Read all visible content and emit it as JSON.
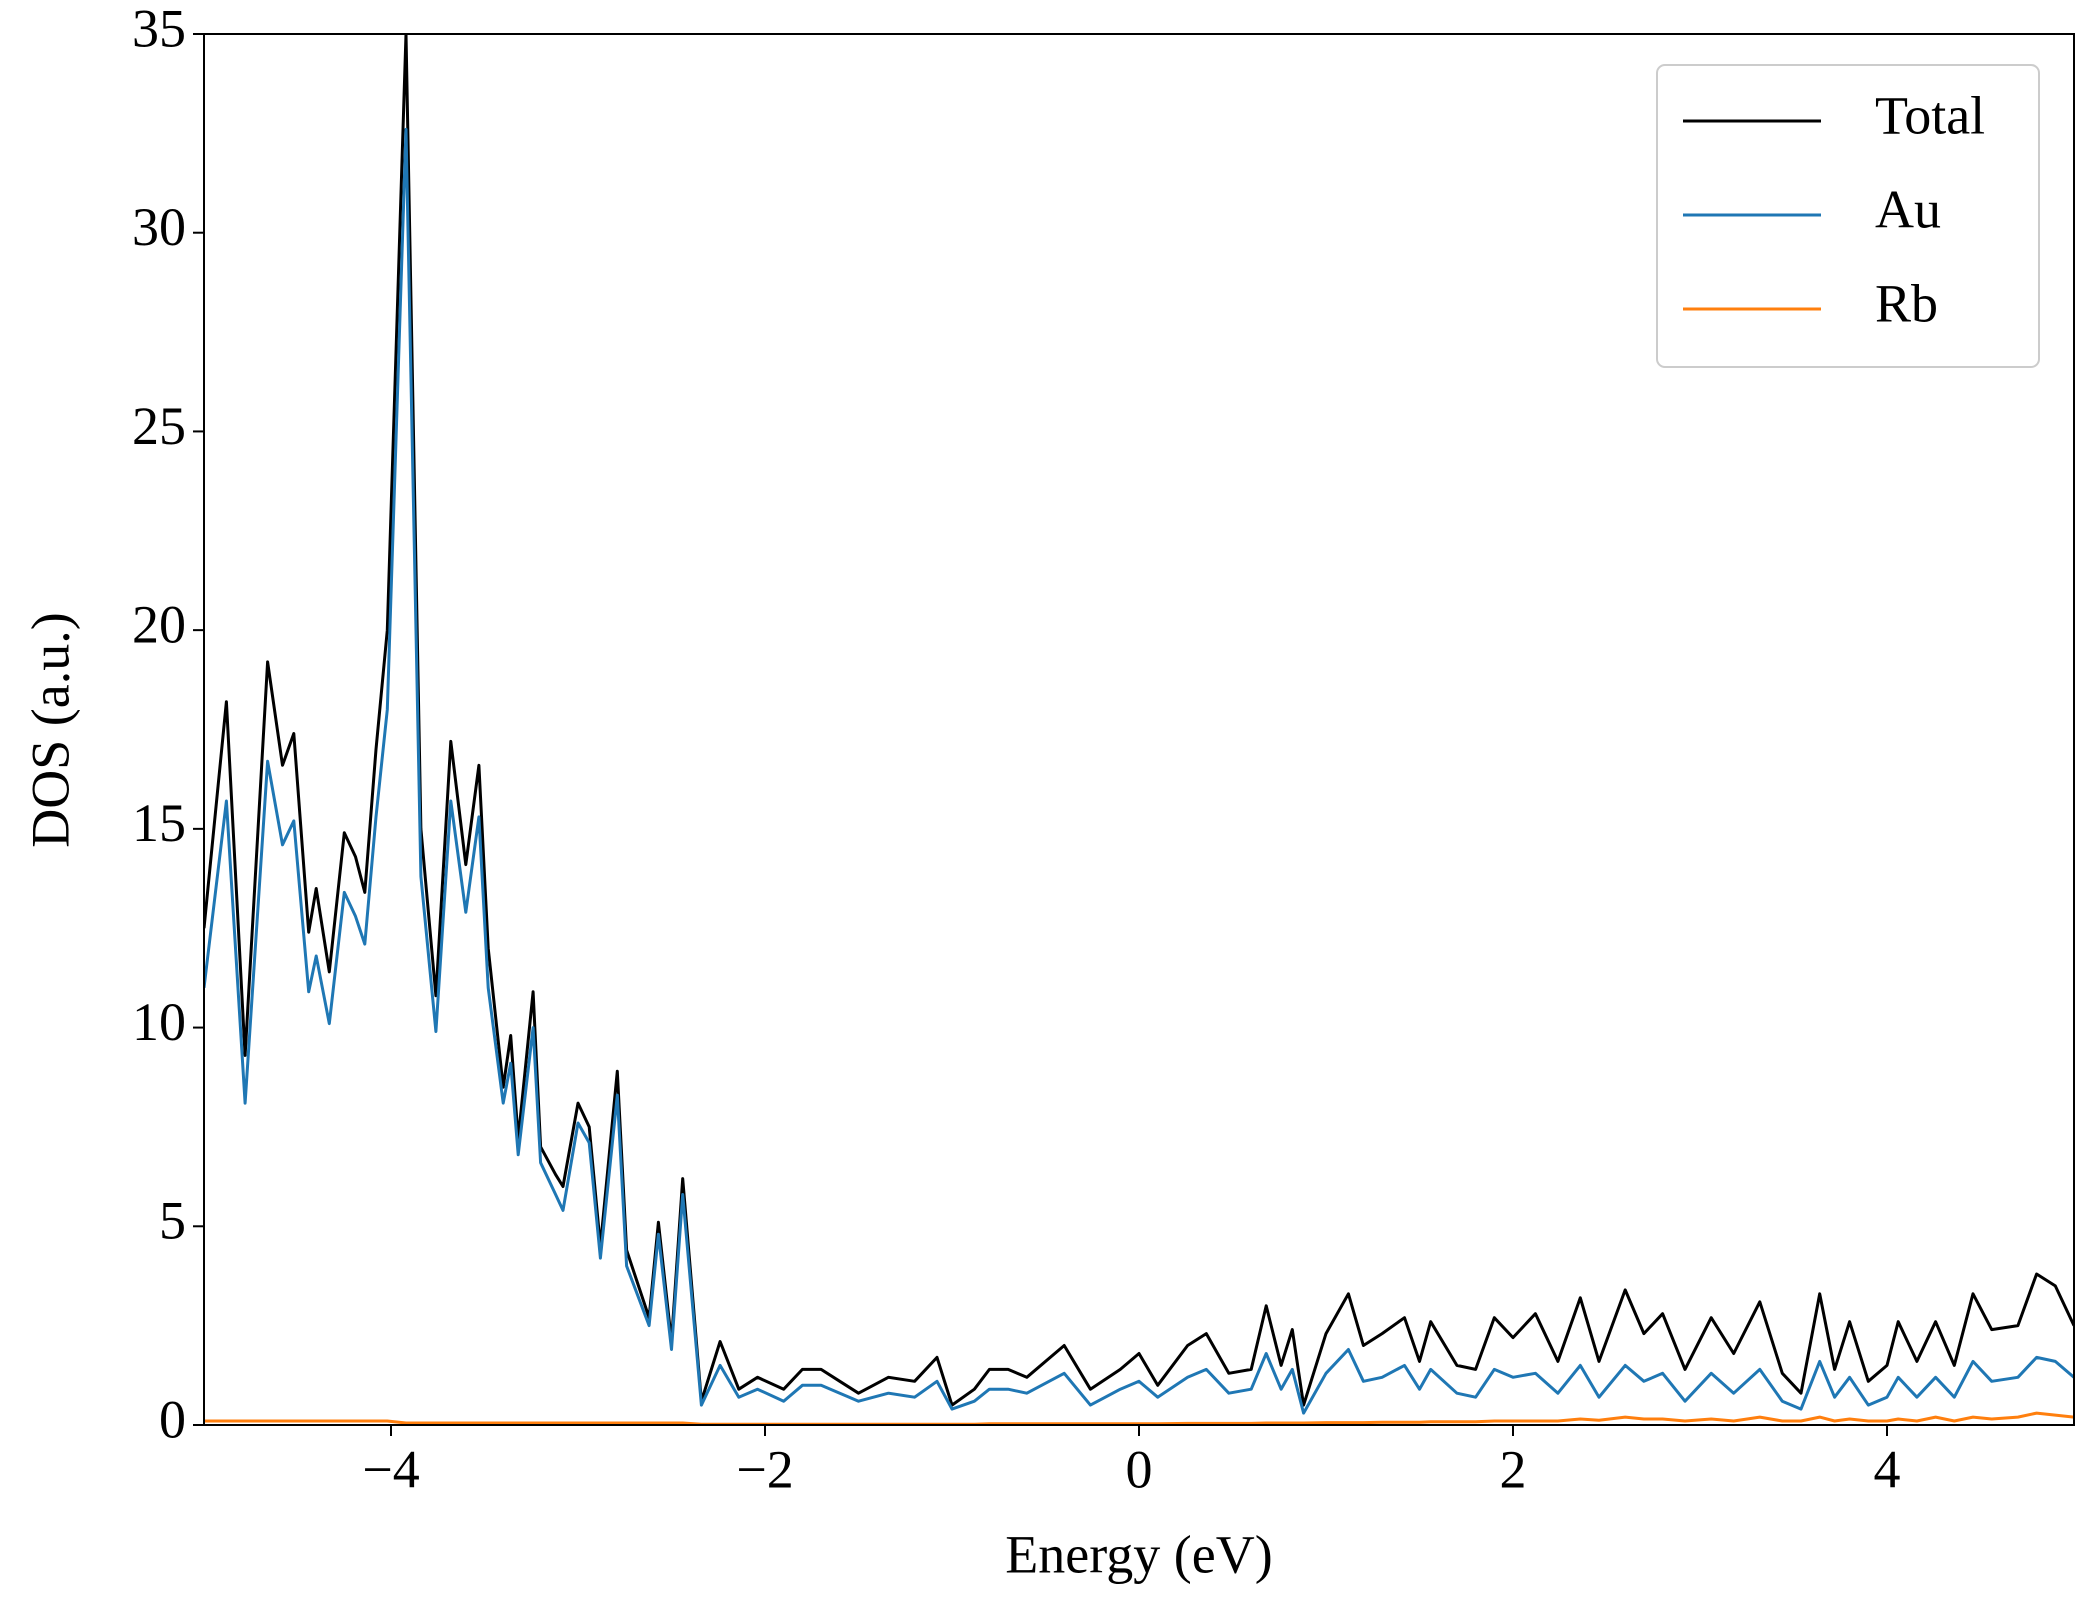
{
  "chart_data": {
    "type": "line",
    "xlabel": "Energy (eV)",
    "ylabel": "DOS (a.u.)",
    "xlim": [
      -5,
      5
    ],
    "ylim": [
      0,
      35
    ],
    "xticks": [
      {
        "value": -4,
        "label": "−4"
      },
      {
        "value": -2,
        "label": "−2"
      },
      0,
      2,
      4
    ],
    "yticks": [
      0,
      5,
      10,
      15,
      20,
      25,
      30,
      35
    ],
    "grid": false,
    "legend": "upper right",
    "x": [
      -5.0,
      -4.88,
      -4.78,
      -4.66,
      -4.58,
      -4.52,
      -4.44,
      -4.4,
      -4.33,
      -4.25,
      -4.19,
      -4.14,
      -4.08,
      -4.02,
      -3.92,
      -3.84,
      -3.76,
      -3.68,
      -3.6,
      -3.53,
      -3.48,
      -3.4,
      -3.36,
      -3.32,
      -3.24,
      -3.2,
      -3.12,
      -3.08,
      -3.0,
      -2.94,
      -2.88,
      -2.79,
      -2.74,
      -2.62,
      -2.57,
      -2.5,
      -2.44,
      -2.34,
      -2.24,
      -2.14,
      -2.04,
      -1.9,
      -1.8,
      -1.7,
      -1.6,
      -1.5,
      -1.34,
      -1.2,
      -1.08,
      -1.0,
      -0.88,
      -0.8,
      -0.7,
      -0.6,
      -0.4,
      -0.26,
      -0.1,
      0.0,
      0.1,
      0.26,
      0.36,
      0.48,
      0.6,
      0.68,
      0.76,
      0.82,
      0.88,
      1.0,
      1.12,
      1.2,
      1.3,
      1.42,
      1.5,
      1.56,
      1.7,
      1.8,
      1.9,
      2.0,
      2.12,
      2.24,
      2.36,
      2.46,
      2.6,
      2.7,
      2.8,
      2.92,
      3.06,
      3.18,
      3.32,
      3.44,
      3.54,
      3.64,
      3.72,
      3.8,
      3.9,
      4.0,
      4.06,
      4.16,
      4.26,
      4.36,
      4.46,
      4.56,
      4.7,
      4.8,
      4.9,
      5.0
    ],
    "series": [
      {
        "name": "Total",
        "color": "#000000",
        "values": [
          12.5,
          18.2,
          9.3,
          19.2,
          16.6,
          17.4,
          12.4,
          13.5,
          11.4,
          14.9,
          14.3,
          13.4,
          17.0,
          20.0,
          35.0,
          15.0,
          10.8,
          17.2,
          14.1,
          16.6,
          12.0,
          8.5,
          9.8,
          7.2,
          10.9,
          7.0,
          6.3,
          6.0,
          8.1,
          7.5,
          4.5,
          8.9,
          4.4,
          2.7,
          5.1,
          2.1,
          6.2,
          0.6,
          2.1,
          0.9,
          1.2,
          0.9,
          1.4,
          1.4,
          1.1,
          0.8,
          1.2,
          1.1,
          1.7,
          0.5,
          0.9,
          1.4,
          1.4,
          1.2,
          2.0,
          0.9,
          1.4,
          1.8,
          1.0,
          2.0,
          2.3,
          1.3,
          1.4,
          3.0,
          1.5,
          2.4,
          0.5,
          2.3,
          3.3,
          2.0,
          2.3,
          2.7,
          1.6,
          2.6,
          1.5,
          1.4,
          2.7,
          2.2,
          2.8,
          1.6,
          3.2,
          1.6,
          3.4,
          2.3,
          2.8,
          1.4,
          2.7,
          1.8,
          3.1,
          1.3,
          0.8,
          3.3,
          1.4,
          2.6,
          1.1,
          1.5,
          2.6,
          1.6,
          2.6,
          1.5,
          3.3,
          2.4,
          2.5,
          3.8,
          3.5,
          2.5
        ]
      },
      {
        "name": "Au",
        "color": "#1f77b4",
        "values": [
          11.0,
          15.7,
          8.1,
          16.7,
          14.6,
          15.2,
          10.9,
          11.8,
          10.1,
          13.4,
          12.8,
          12.1,
          15.3,
          18.0,
          32.6,
          13.8,
          9.9,
          15.7,
          12.9,
          15.3,
          11.0,
          8.1,
          9.1,
          6.8,
          10.0,
          6.6,
          5.8,
          5.4,
          7.6,
          7.1,
          4.2,
          8.3,
          4.0,
          2.5,
          4.8,
          1.9,
          5.8,
          0.5,
          1.5,
          0.7,
          0.9,
          0.6,
          1.0,
          1.0,
          0.8,
          0.6,
          0.8,
          0.7,
          1.1,
          0.4,
          0.6,
          0.9,
          0.9,
          0.8,
          1.3,
          0.5,
          0.9,
          1.1,
          0.7,
          1.2,
          1.4,
          0.8,
          0.9,
          1.8,
          0.9,
          1.4,
          0.3,
          1.3,
          1.9,
          1.1,
          1.2,
          1.5,
          0.9,
          1.4,
          0.8,
          0.7,
          1.4,
          1.2,
          1.3,
          0.8,
          1.5,
          0.7,
          1.5,
          1.1,
          1.3,
          0.6,
          1.3,
          0.8,
          1.4,
          0.6,
          0.4,
          1.6,
          0.7,
          1.2,
          0.5,
          0.7,
          1.2,
          0.7,
          1.2,
          0.7,
          1.6,
          1.1,
          1.2,
          1.7,
          1.6,
          1.2
        ]
      },
      {
        "name": "Rb",
        "color": "#ff7f0e",
        "values": [
          0.1,
          0.1,
          0.1,
          0.1,
          0.1,
          0.1,
          0.1,
          0.1,
          0.1,
          0.1,
          0.1,
          0.1,
          0.1,
          0.1,
          0.05,
          0.05,
          0.05,
          0.05,
          0.05,
          0.05,
          0.05,
          0.05,
          0.05,
          0.05,
          0.05,
          0.05,
          0.05,
          0.05,
          0.05,
          0.05,
          0.05,
          0.05,
          0.05,
          0.05,
          0.05,
          0.05,
          0.05,
          0.02,
          0.02,
          0.02,
          0.02,
          0.02,
          0.02,
          0.02,
          0.02,
          0.02,
          0.02,
          0.02,
          0.02,
          0.02,
          0.02,
          0.03,
          0.03,
          0.03,
          0.03,
          0.03,
          0.03,
          0.03,
          0.03,
          0.04,
          0.04,
          0.04,
          0.04,
          0.05,
          0.05,
          0.05,
          0.05,
          0.06,
          0.06,
          0.06,
          0.07,
          0.07,
          0.07,
          0.08,
          0.08,
          0.08,
          0.1,
          0.1,
          0.1,
          0.1,
          0.15,
          0.12,
          0.2,
          0.15,
          0.15,
          0.1,
          0.15,
          0.1,
          0.2,
          0.1,
          0.1,
          0.2,
          0.1,
          0.15,
          0.1,
          0.1,
          0.15,
          0.1,
          0.2,
          0.1,
          0.2,
          0.15,
          0.2,
          0.3,
          0.25,
          0.2
        ]
      }
    ]
  }
}
